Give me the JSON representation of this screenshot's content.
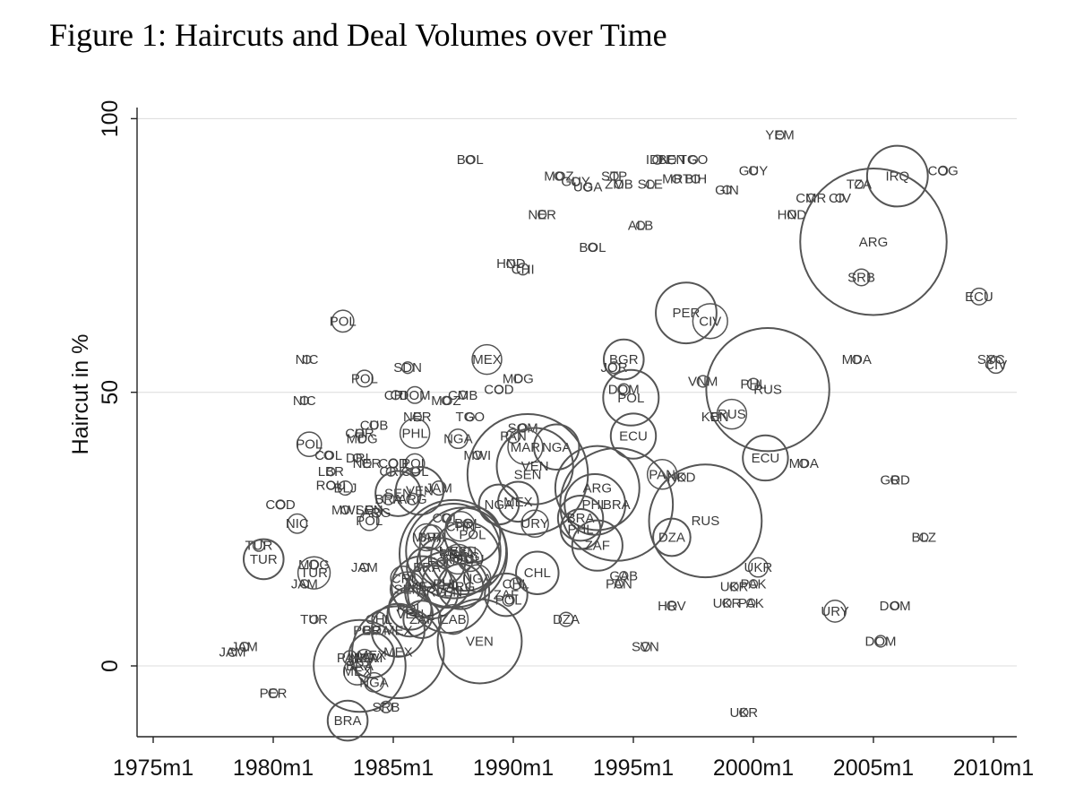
{
  "figure_title": "Figure 1: Haircuts and Deal Volumes over Time",
  "chart_data": {
    "type": "scatter",
    "title": "Figure 1: Haircuts and Deal Volumes over Time",
    "xlabel": "",
    "ylabel": "Haircut in %",
    "xlim": [
      1974.5,
      2010.5
    ],
    "ylim": [
      -13,
      102
    ],
    "x_ticks": [
      1975,
      1980,
      1985,
      1990,
      1995,
      2000,
      2005,
      2010
    ],
    "x_tick_labels": [
      "1975m1",
      "1980m1",
      "1985m1",
      "1990m1",
      "1995m1",
      "2000m1",
      "2005m1",
      "2010m1"
    ],
    "y_ticks": [
      0,
      50,
      100
    ],
    "y_tick_labels": [
      "0",
      "50",
      "100"
    ],
    "grid": "horizontal",
    "marker": "hollow circles sized by deal volume, labeled by country code",
    "points": [
      {
        "label": "YEM",
        "x": 2001.1,
        "y": 97,
        "s": 1
      },
      {
        "label": "BOL",
        "x": 1988.2,
        "y": 92.5,
        "s": 1
      },
      {
        "label": "IDN",
        "x": 1996.0,
        "y": 92.5,
        "s": 2
      },
      {
        "label": "BEN",
        "x": 1996.6,
        "y": 92.5,
        "s": 1
      },
      {
        "label": "TGO",
        "x": 1997.5,
        "y": 92.5,
        "s": 1
      },
      {
        "label": "COG",
        "x": 2007.9,
        "y": 90.5,
        "s": 2
      },
      {
        "label": "IRQ",
        "x": 2006.0,
        "y": 89.5,
        "s": 22
      },
      {
        "label": "GUY",
        "x": 2000.0,
        "y": 90.5,
        "s": 1
      },
      {
        "label": "MOZ",
        "x": 1991.9,
        "y": 89.5,
        "s": 1
      },
      {
        "label": "GUY",
        "x": 1992.6,
        "y": 88.5,
        "s": 1
      },
      {
        "label": "UGA",
        "x": 1993.1,
        "y": 87.5,
        "s": 1
      },
      {
        "label": "STP",
        "x": 1994.2,
        "y": 89.5,
        "s": 1
      },
      {
        "label": "ZMB",
        "x": 1994.4,
        "y": 88.0,
        "s": 1
      },
      {
        "label": "SLE",
        "x": 1995.7,
        "y": 88.0,
        "s": 1
      },
      {
        "label": "MRT",
        "x": 1996.8,
        "y": 89.0,
        "s": 1
      },
      {
        "label": "BIH",
        "x": 1997.6,
        "y": 89.0,
        "s": 1
      },
      {
        "label": "TZA",
        "x": 2004.4,
        "y": 88.0,
        "s": 1
      },
      {
        "label": "GIN",
        "x": 1998.9,
        "y": 87.0,
        "s": 1
      },
      {
        "label": "CMR",
        "x": 2002.4,
        "y": 85.5,
        "s": 1
      },
      {
        "label": "CIV",
        "x": 2003.6,
        "y": 85.5,
        "s": 1
      },
      {
        "label": "NER",
        "x": 1991.2,
        "y": 82.5,
        "s": 1
      },
      {
        "label": "HND",
        "x": 2001.6,
        "y": 82.5,
        "s": 0
      },
      {
        "label": "ALB",
        "x": 1995.3,
        "y": 80.5,
        "s": 1
      },
      {
        "label": "ARG",
        "x": 2005.0,
        "y": 77.5,
        "s": 55
      },
      {
        "label": "BOL",
        "x": 1993.3,
        "y": 76.5,
        "s": 1
      },
      {
        "label": "HND",
        "x": 1989.9,
        "y": 73.5,
        "s": 1
      },
      {
        "label": "CHI",
        "x": 1990.4,
        "y": 72.5,
        "s": 3
      },
      {
        "label": "SRB",
        "x": 2004.5,
        "y": 71.0,
        "s": 5
      },
      {
        "label": "ECU",
        "x": 2009.4,
        "y": 67.5,
        "s": 5
      },
      {
        "label": "PER",
        "x": 1997.2,
        "y": 64.5,
        "s": 22
      },
      {
        "label": "CIV",
        "x": 1998.2,
        "y": 63.0,
        "s": 12
      },
      {
        "label": "POL",
        "x": 1982.9,
        "y": 63.0,
        "s": 7
      },
      {
        "label": "NIC",
        "x": 1981.4,
        "y": 56.0,
        "s": 1
      },
      {
        "label": "MEX",
        "x": 1988.9,
        "y": 56.0,
        "s": 10
      },
      {
        "label": "BGR",
        "x": 1994.6,
        "y": 56.0,
        "s": 14
      },
      {
        "label": "MDA",
        "x": 2004.3,
        "y": 56.0,
        "s": 1
      },
      {
        "label": "SYC",
        "x": 2009.9,
        "y": 56.0,
        "s": 1
      },
      {
        "label": "CIV",
        "x": 2010.1,
        "y": 55.0,
        "s": 5
      },
      {
        "label": "SDN",
        "x": 1985.6,
        "y": 54.5,
        "s": 3
      },
      {
        "label": "JOR",
        "x": 1994.2,
        "y": 54.5,
        "s": 3
      },
      {
        "label": "POL",
        "x": 1983.8,
        "y": 52.5,
        "s": 5
      },
      {
        "label": "MDG",
        "x": 1990.2,
        "y": 52.5,
        "s": 1
      },
      {
        "label": "VNM",
        "x": 1997.9,
        "y": 52.0,
        "s": 3
      },
      {
        "label": "PHL",
        "x": 2000.0,
        "y": 51.5,
        "s": 3
      },
      {
        "label": "RUS",
        "x": 2000.6,
        "y": 50.5,
        "s": 46
      },
      {
        "label": "DOM",
        "x": 1994.6,
        "y": 50.5,
        "s": 3
      },
      {
        "label": "POL",
        "x": 1994.9,
        "y": 49.0,
        "s": 20
      },
      {
        "label": "CRI",
        "x": 1985.1,
        "y": 49.5,
        "s": 2
      },
      {
        "label": "DOM",
        "x": 1985.9,
        "y": 49.5,
        "s": 5
      },
      {
        "label": "CMB",
        "x": 1987.9,
        "y": 49.5,
        "s": 1
      },
      {
        "label": "COD",
        "x": 1989.4,
        "y": 50.5,
        "s": 1
      },
      {
        "label": "MOZ",
        "x": 1987.2,
        "y": 48.5,
        "s": 1
      },
      {
        "label": "NIC",
        "x": 1981.3,
        "y": 48.5,
        "s": 1
      },
      {
        "label": "KEN",
        "x": 1998.4,
        "y": 45.5,
        "s": 1
      },
      {
        "label": "RUS",
        "x": 1999.1,
        "y": 46.0,
        "s": 10
      },
      {
        "label": "NER",
        "x": 1986.0,
        "y": 45.5,
        "s": 1
      },
      {
        "label": "TGO",
        "x": 1988.2,
        "y": 45.5,
        "s": 1
      },
      {
        "label": "CUB",
        "x": 1984.2,
        "y": 44.0,
        "s": 1
      },
      {
        "label": "PHL",
        "x": 1985.9,
        "y": 42.5,
        "s": 10
      },
      {
        "label": "SOM",
        "x": 1990.4,
        "y": 43.5,
        "s": 1
      },
      {
        "label": "CHR",
        "x": 1983.6,
        "y": 42.5,
        "s": 1
      },
      {
        "label": "NGA",
        "x": 1987.7,
        "y": 41.5,
        "s": 6
      },
      {
        "label": "PAN",
        "x": 1990.0,
        "y": 42.0,
        "s": 4
      },
      {
        "label": "ECU",
        "x": 1995.0,
        "y": 42.0,
        "s": 16
      },
      {
        "label": "MDG",
        "x": 1983.7,
        "y": 41.5,
        "s": 1
      },
      {
        "label": "POL",
        "x": 1981.5,
        "y": 40.5,
        "s": 8
      },
      {
        "label": "NGA",
        "x": 1991.8,
        "y": 40.0,
        "s": 16
      },
      {
        "label": "MAR",
        "x": 1990.5,
        "y": 40.0,
        "s": 12
      },
      {
        "label": "MWI",
        "x": 1988.5,
        "y": 38.5,
        "s": 1
      },
      {
        "label": "COL",
        "x": 1982.3,
        "y": 38.5,
        "s": 1
      },
      {
        "label": "ECU",
        "x": 2000.5,
        "y": 38.0,
        "s": 16
      },
      {
        "label": "DRI",
        "x": 1983.5,
        "y": 38.0,
        "s": 1
      },
      {
        "label": "NER",
        "x": 1983.9,
        "y": 37.0,
        "s": 1
      },
      {
        "label": "POL",
        "x": 1985.9,
        "y": 37.0,
        "s": 6
      },
      {
        "label": "COD",
        "x": 1985.0,
        "y": 37.0,
        "s": 2
      },
      {
        "label": "MDA",
        "x": 2002.1,
        "y": 37.0,
        "s": 1
      },
      {
        "label": "VEN",
        "x": 1990.9,
        "y": 36.5,
        "s": 28
      },
      {
        "label": "LBR",
        "x": 1982.4,
        "y": 35.5,
        "s": 1
      },
      {
        "label": "CRI",
        "x": 1984.9,
        "y": 35.5,
        "s": 2
      },
      {
        "label": "COL",
        "x": 1985.9,
        "y": 35.5,
        "s": 2
      },
      {
        "label": "SEN",
        "x": 1990.6,
        "y": 35.0,
        "s": 45
      },
      {
        "label": "PAN",
        "x": 1996.2,
        "y": 35.0,
        "s": 10
      },
      {
        "label": "NKD",
        "x": 1997.0,
        "y": 34.5,
        "s": 1
      },
      {
        "label": "GRD",
        "x": 2005.9,
        "y": 34.0,
        "s": 1
      },
      {
        "label": "ROU",
        "x": 1982.4,
        "y": 33.0,
        "s": 1
      },
      {
        "label": "ARG",
        "x": 1993.5,
        "y": 32.5,
        "s": 31
      },
      {
        "label": "BLJ",
        "x": 1983.0,
        "y": 32.5,
        "s": 4
      },
      {
        "label": "JAM",
        "x": 1986.9,
        "y": 32.5,
        "s": 4
      },
      {
        "label": "SEN",
        "x": 1985.2,
        "y": 31.5,
        "s": 16
      },
      {
        "label": "VEN",
        "x": 1986.1,
        "y": 32.0,
        "s": 17
      },
      {
        "label": "BRA",
        "x": 1984.8,
        "y": 30.5,
        "s": 3
      },
      {
        "label": "ARG",
        "x": 1985.8,
        "y": 30.5,
        "s": 3
      },
      {
        "label": "MEX",
        "x": 1990.2,
        "y": 30.0,
        "s": 14
      },
      {
        "label": "NGA",
        "x": 1989.4,
        "y": 29.5,
        "s": 14
      },
      {
        "label": "COD",
        "x": 1980.3,
        "y": 29.5,
        "s": 2
      },
      {
        "label": "PHL",
        "x": 1993.4,
        "y": 29.5,
        "s": 22
      },
      {
        "label": "BRA",
        "x": 1994.3,
        "y": 29.5,
        "s": 42
      },
      {
        "label": "MWI",
        "x": 1983.0,
        "y": 28.5,
        "s": 1
      },
      {
        "label": "SEN",
        "x": 1984.0,
        "y": 28.5,
        "s": 1
      },
      {
        "label": "ARG",
        "x": 1984.3,
        "y": 28.0,
        "s": 2
      },
      {
        "label": "BRA",
        "x": 1992.8,
        "y": 27.0,
        "s": 16
      },
      {
        "label": "RUS",
        "x": 1998.0,
        "y": 26.5,
        "s": 42
      },
      {
        "label": "POL",
        "x": 1984.0,
        "y": 26.5,
        "s": 6
      },
      {
        "label": "NIC",
        "x": 1981.0,
        "y": 26.0,
        "s": 6
      },
      {
        "label": "COL",
        "x": 1987.2,
        "y": 27.0,
        "s": 2
      },
      {
        "label": "URY",
        "x": 1990.9,
        "y": 26.0,
        "s": 9
      },
      {
        "label": "BOL",
        "x": 1988.1,
        "y": 26.0,
        "s": 2
      },
      {
        "label": "CHN",
        "x": 1987.8,
        "y": 25.5,
        "s": 10
      },
      {
        "label": "PHL",
        "x": 1992.8,
        "y": 25.0,
        "s": 14
      },
      {
        "label": "POL",
        "x": 1988.3,
        "y": 24.0,
        "s": 20
      },
      {
        "label": "MAR",
        "x": 1986.4,
        "y": 23.5,
        "s": 9
      },
      {
        "label": "BRA",
        "x": 1986.6,
        "y": 23.5,
        "s": 8
      },
      {
        "label": "BLZ",
        "x": 2007.1,
        "y": 23.5,
        "s": 1
      },
      {
        "label": "DZA",
        "x": 1996.6,
        "y": 23.5,
        "s": 13
      },
      {
        "label": "TUR",
        "x": 1979.4,
        "y": 22.0,
        "s": 3
      },
      {
        "label": "ZAF",
        "x": 1993.5,
        "y": 22.0,
        "s": 18
      },
      {
        "label": "BRA",
        "x": 1987.5,
        "y": 20.5,
        "s": 40
      },
      {
        "label": "MEX",
        "x": 1987.5,
        "y": 21.0,
        "s": 35
      },
      {
        "label": "VEN",
        "x": 1987.9,
        "y": 21.0,
        "s": 32
      },
      {
        "label": "ARG",
        "x": 1988.0,
        "y": 20.0,
        "s": 25
      },
      {
        "label": "ROU",
        "x": 1987.7,
        "y": 19.5,
        "s": 10
      },
      {
        "label": "ECU",
        "x": 1988.2,
        "y": 19.5,
        "s": 8
      },
      {
        "label": "TUR",
        "x": 1979.6,
        "y": 19.5,
        "s": 14
      },
      {
        "label": "ECU",
        "x": 1987.0,
        "y": 19.0,
        "s": 17
      },
      {
        "label": "MDG",
        "x": 1981.7,
        "y": 18.5,
        "s": 2
      },
      {
        "label": "UKR",
        "x": 2000.2,
        "y": 18.0,
        "s": 6
      },
      {
        "label": "BRA",
        "x": 1986.4,
        "y": 18.0,
        "s": 14
      },
      {
        "label": "JAM",
        "x": 1983.8,
        "y": 18.0,
        "s": 1
      },
      {
        "label": "TUR",
        "x": 1981.7,
        "y": 17.0,
        "s": 11
      },
      {
        "label": "GAB",
        "x": 1994.6,
        "y": 16.5,
        "s": 1
      },
      {
        "label": "CHL",
        "x": 1991.0,
        "y": 17.0,
        "s": 15
      },
      {
        "label": "NGA",
        "x": 1988.5,
        "y": 16.0,
        "s": 9
      },
      {
        "label": "CRI",
        "x": 1985.4,
        "y": 16.0,
        "s": 8
      },
      {
        "label": "JAM",
        "x": 1981.3,
        "y": 15.0,
        "s": 1
      },
      {
        "label": "PHL",
        "x": 1987.2,
        "y": 15.0,
        "s": 17
      },
      {
        "label": "CHL",
        "x": 1990.1,
        "y": 15.0,
        "s": 3
      },
      {
        "label": "PAN",
        "x": 1994.4,
        "y": 15.0,
        "s": 1
      },
      {
        "label": "PAK",
        "x": 2000.0,
        "y": 15.0,
        "s": 1
      },
      {
        "label": "UKR",
        "x": 1999.2,
        "y": 14.5,
        "s": 1
      },
      {
        "label": "SEN",
        "x": 1985.6,
        "y": 14.0,
        "s": 12
      },
      {
        "label": "MEX",
        "x": 1986.2,
        "y": 14.5,
        "s": 22
      },
      {
        "label": "ARG",
        "x": 1986.6,
        "y": 13.5,
        "s": 19
      },
      {
        "label": "VEN",
        "x": 1987.3,
        "y": 13.5,
        "s": 30
      },
      {
        "label": "ARG",
        "x": 1987.8,
        "y": 14.5,
        "s": 16
      },
      {
        "label": "ZAF",
        "x": 1989.7,
        "y": 13.0,
        "s": 15
      },
      {
        "label": "POL",
        "x": 1989.8,
        "y": 12.0,
        "s": 3
      },
      {
        "label": "UKR",
        "x": 1998.9,
        "y": 11.5,
        "s": 1
      },
      {
        "label": "PAK",
        "x": 1999.9,
        "y": 11.5,
        "s": 1
      },
      {
        "label": "HRV",
        "x": 1996.6,
        "y": 11.0,
        "s": 2
      },
      {
        "label": "DOM",
        "x": 2005.9,
        "y": 11.0,
        "s": 1
      },
      {
        "label": "POL",
        "x": 1985.7,
        "y": 10.5,
        "s": 15
      },
      {
        "label": "URY",
        "x": 2003.4,
        "y": 10.0,
        "s": 7
      },
      {
        "label": "VEN",
        "x": 1985.7,
        "y": 9.5,
        "s": 16
      },
      {
        "label": "ZAF",
        "x": 1986.2,
        "y": 8.5,
        "s": 13
      },
      {
        "label": "ZAB",
        "x": 1987.5,
        "y": 8.5,
        "s": 10
      },
      {
        "label": "DZA",
        "x": 1992.2,
        "y": 8.5,
        "s": 4
      },
      {
        "label": "CHL",
        "x": 1984.4,
        "y": 8.5,
        "s": 4
      },
      {
        "label": "TUR",
        "x": 1981.7,
        "y": 8.5,
        "s": 1
      },
      {
        "label": "PER",
        "x": 1983.9,
        "y": 6.5,
        "s": 1
      },
      {
        "label": "BRA",
        "x": 1984.3,
        "y": 6.5,
        "s": 1
      },
      {
        "label": "MEX",
        "x": 1985.2,
        "y": 6.5,
        "s": 19
      },
      {
        "label": "VEN",
        "x": 1988.6,
        "y": 4.5,
        "s": 31
      },
      {
        "label": "DOM",
        "x": 2005.3,
        "y": 4.5,
        "s": 3
      },
      {
        "label": "SVN",
        "x": 1995.5,
        "y": 3.5,
        "s": 2
      },
      {
        "label": "JAM",
        "x": 1978.8,
        "y": 3.5,
        "s": 2
      },
      {
        "label": "JAM",
        "x": 1978.3,
        "y": 2.5,
        "s": 1
      },
      {
        "label": "MEX",
        "x": 1985.2,
        "y": 2.5,
        "s": 34
      },
      {
        "label": "MEX",
        "x": 1984.1,
        "y": 2.0,
        "s": 16
      },
      {
        "label": "NGA",
        "x": 1983.8,
        "y": 1.5,
        "s": 5
      },
      {
        "label": "PAN",
        "x": 1983.2,
        "y": 1.5,
        "s": 4
      },
      {
        "label": "MWI",
        "x": 1984.0,
        "y": 1.5,
        "s": 2
      },
      {
        "label": "BRA",
        "x": 1983.6,
        "y": 0.0,
        "s": 34
      },
      {
        "label": "MEX",
        "x": 1983.5,
        "y": -1.0,
        "s": 9
      },
      {
        "label": "NGA",
        "x": 1984.2,
        "y": -3.0,
        "s": 6
      },
      {
        "label": "PER",
        "x": 1980.0,
        "y": -5.0,
        "s": 2
      },
      {
        "label": "SRB",
        "x": 1984.7,
        "y": -7.5,
        "s": 3
      },
      {
        "label": "UKR",
        "x": 1999.6,
        "y": -8.5,
        "s": 1
      },
      {
        "label": "BRA",
        "x": 1983.1,
        "y": -10.0,
        "s": 14
      }
    ]
  }
}
